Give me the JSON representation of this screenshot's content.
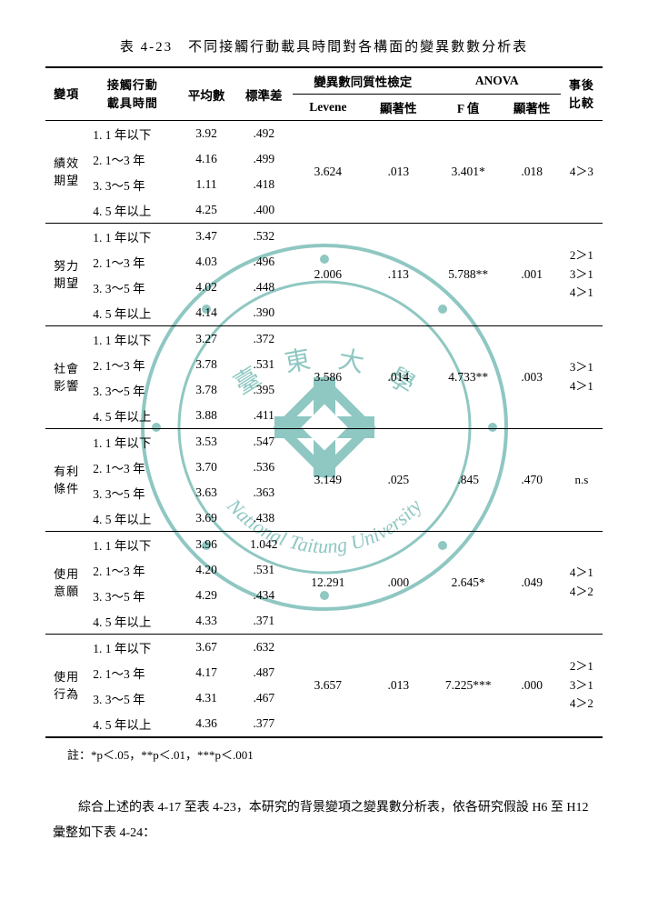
{
  "title": "表 4-23　不同接觸行動載具時間對各構面的變異數數分析表",
  "header": {
    "var": "變項",
    "group": "接觸行動\n載具時間",
    "mean": "平均數",
    "sd": "標準差",
    "homog": "變異數同質性檢定",
    "anova": "ANOVA",
    "posthoc": "事後\n比較",
    "levene": "Levene",
    "sig1": "顯著性",
    "f": "F 值",
    "sig2": "顯著性"
  },
  "groups": [
    "1. 1 年以下",
    "2. 1～3 年",
    "3. 3～5 年",
    "4. 5 年以上"
  ],
  "sections": [
    {
      "name": "績效\n期望",
      "means": [
        "3.92",
        "4.16",
        "1.11",
        "4.25"
      ],
      "sds": [
        ".492",
        ".499",
        ".418",
        ".400"
      ],
      "levene": "3.624",
      "sig1": ".013",
      "f": "3.401*",
      "sig2": ".018",
      "post": "4＞3"
    },
    {
      "name": "努力\n期望",
      "means": [
        "3.47",
        "4.03",
        "4.02",
        "4.14"
      ],
      "sds": [
        ".532",
        ".496",
        ".448",
        ".390"
      ],
      "levene": "2.006",
      "sig1": ".113",
      "f": "5.788**",
      "sig2": ".001",
      "post": "2＞1\n3＞1\n4＞1"
    },
    {
      "name": "社會\n影響",
      "means": [
        "3.27",
        "3.78",
        "3.78",
        "3.88"
      ],
      "sds": [
        ".372",
        ".531",
        ".395",
        ".411"
      ],
      "levene": "3.586",
      "sig1": ".014",
      "f": "4.733**",
      "sig2": ".003",
      "post": "3＞1\n4＞1"
    },
    {
      "name": "有利\n條件",
      "means": [
        "3.53",
        "3.70",
        "3.63",
        "3.69"
      ],
      "sds": [
        ".547",
        ".536",
        ".363",
        ".438"
      ],
      "levene": "3.149",
      "sig1": ".025",
      "f": ".845",
      "sig2": ".470",
      "post": "n.s"
    },
    {
      "name": "使用\n意願",
      "means": [
        "3.96",
        "4.20",
        "4.29",
        "4.33"
      ],
      "sds": [
        "1.042",
        ".531",
        ".434",
        ".371"
      ],
      "levene": "12.291",
      "sig1": ".000",
      "f": "2.645*",
      "sig2": ".049",
      "post": "4＞1\n4＞2"
    },
    {
      "name": "使用\n行為",
      "means": [
        "3.67",
        "4.17",
        "4.31",
        "4.36"
      ],
      "sds": [
        ".632",
        ".487",
        ".467",
        ".377"
      ],
      "levene": "3.657",
      "sig1": ".013",
      "f": "7.225***",
      "sig2": ".000",
      "post": "2＞1\n3＞1\n4＞2"
    }
  ],
  "footnote": "註：*p＜.05，**p＜.01，***p＜.001",
  "para": "綜合上述的表 4-17 至表 4-23，本研究的背景變項之變異數分析表，依各研究假設 H6 至 H12 彙整如下表 4-24："
}
